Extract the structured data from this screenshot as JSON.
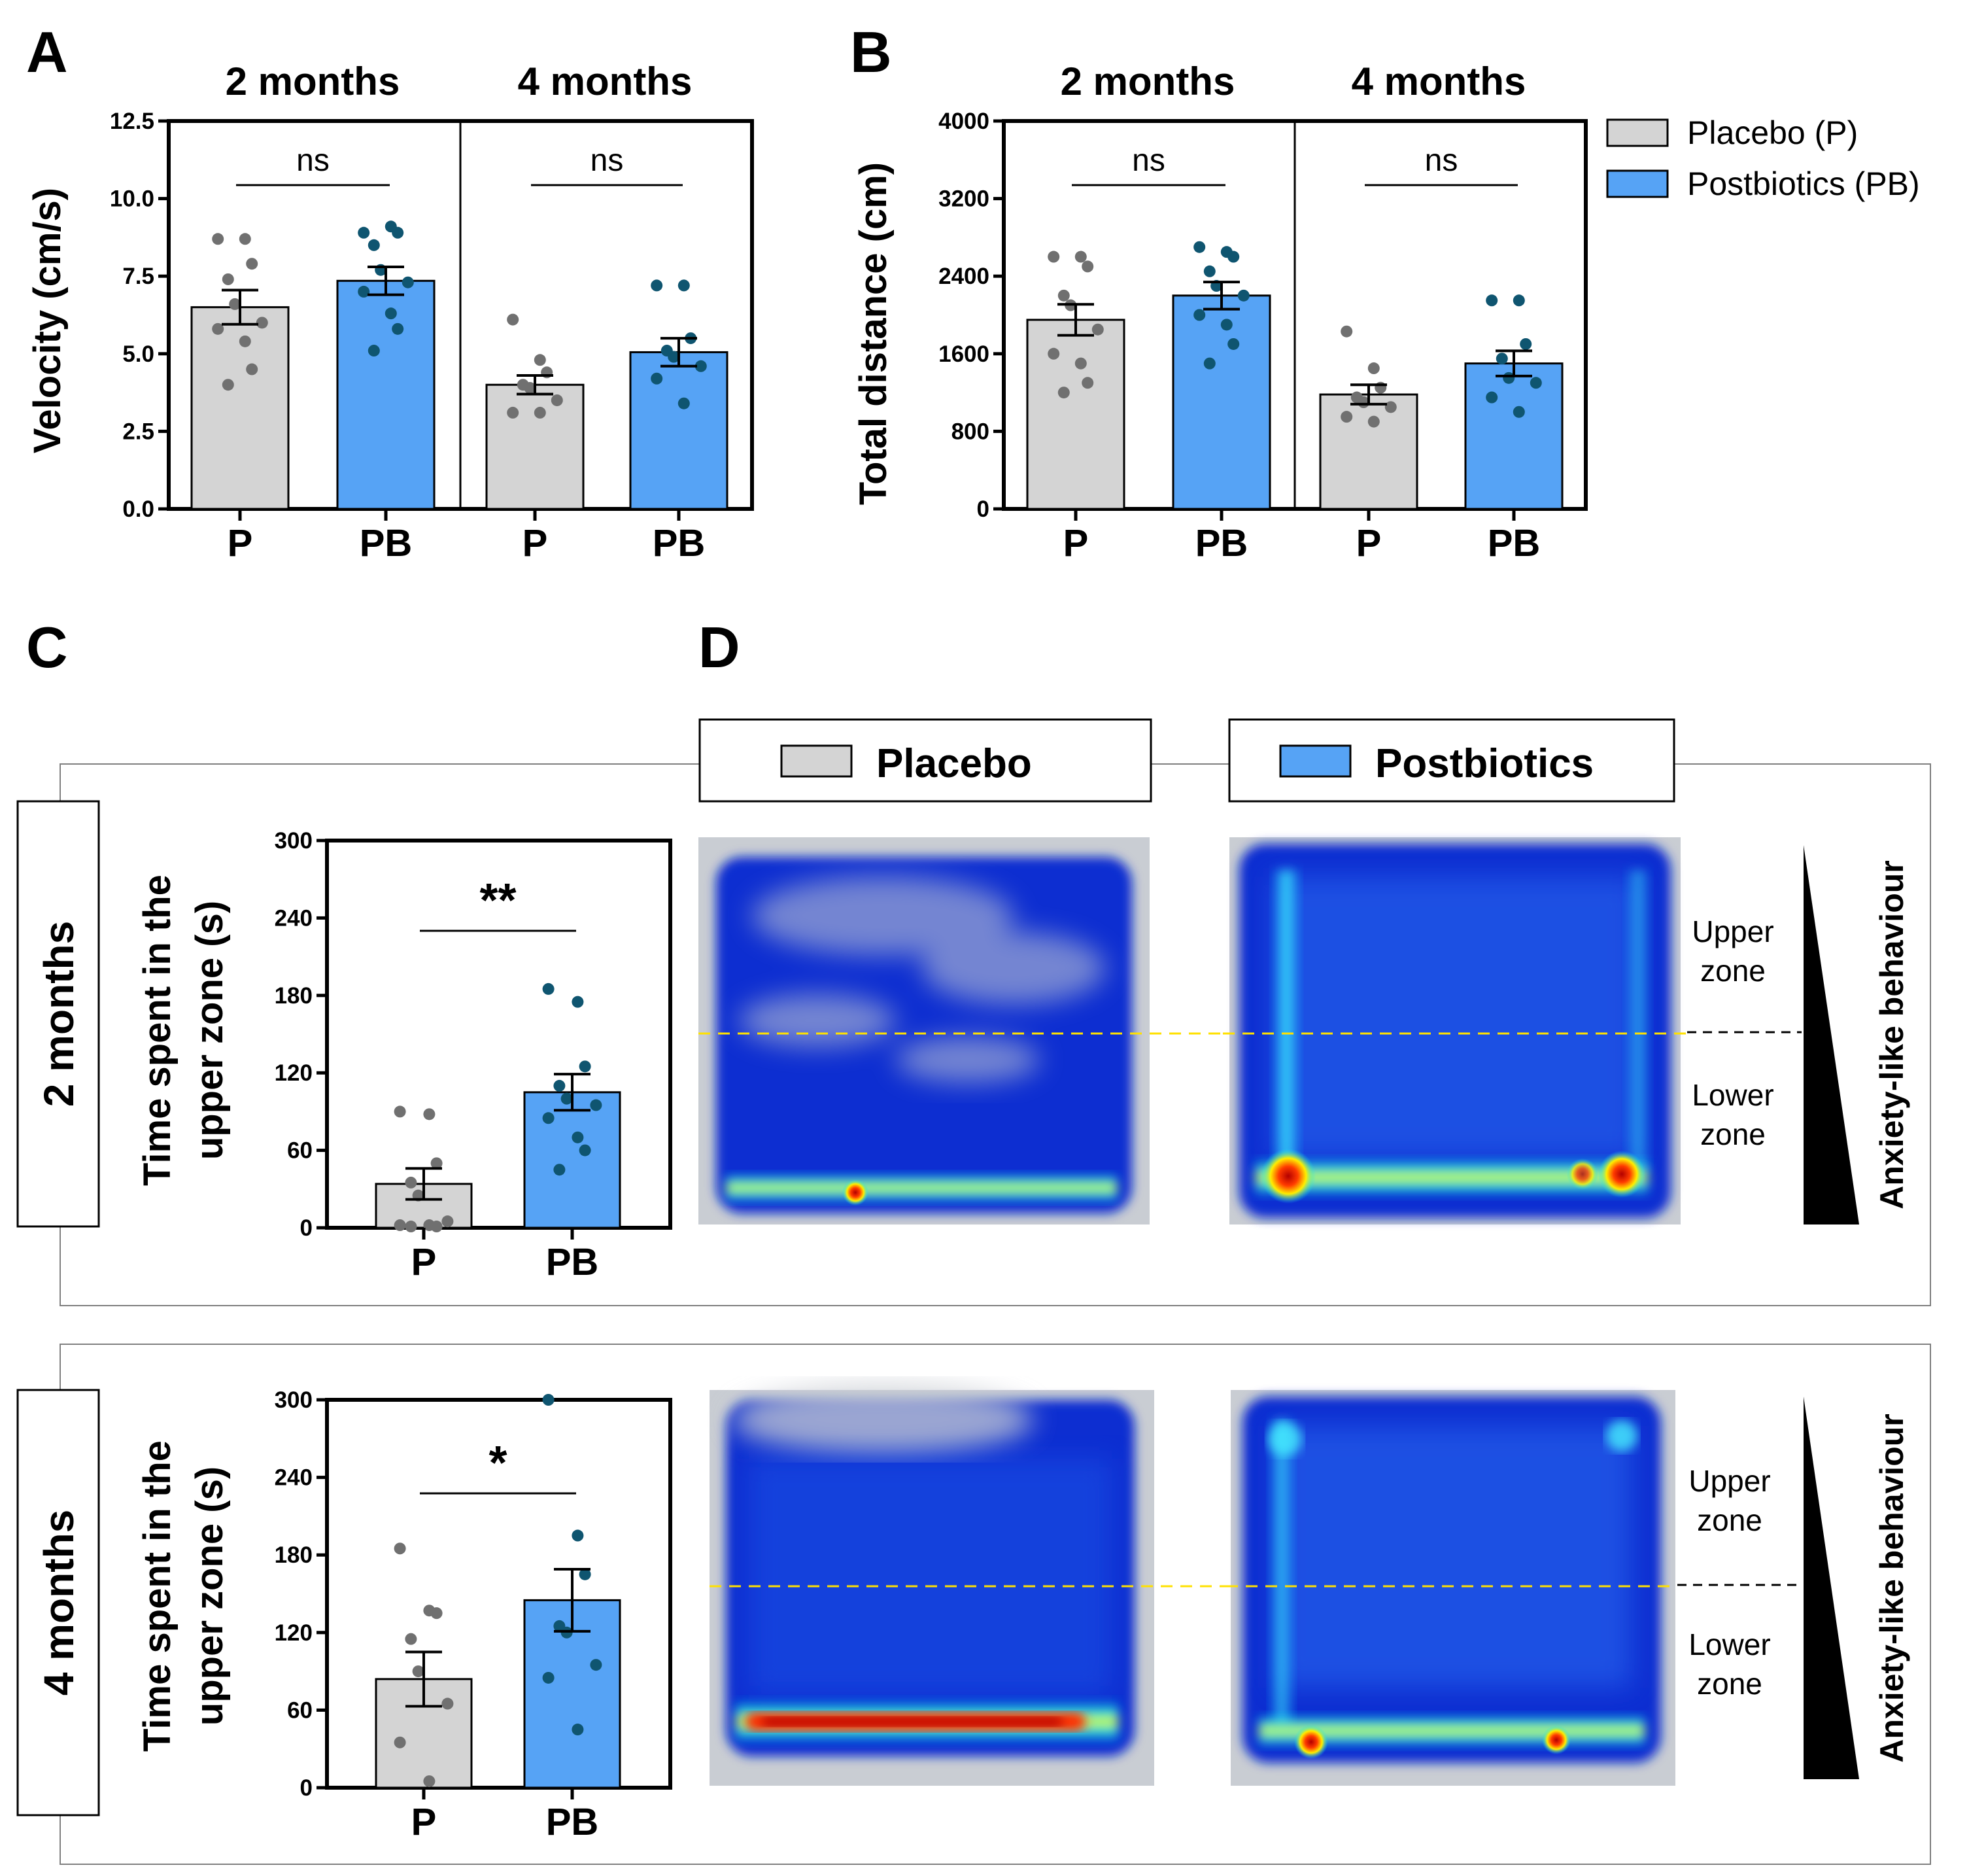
{
  "panel_labels": [
    "A",
    "B",
    "C",
    "D"
  ],
  "legend": {
    "entries": [
      {
        "label": "Placebo (P)",
        "color": "#d4d4d4"
      },
      {
        "label": "Postbiotics (PB)",
        "color": "#56a3f5"
      }
    ]
  },
  "colors": {
    "placebo_fill": "#d4d4d4",
    "postbiotics_fill": "#56a3f5",
    "placebo_dot": "#707070",
    "postbiotics_dot": "#0f5570",
    "heatmap_background": "#0a2fd1"
  },
  "panel_d": {
    "headers": [
      "Placebo",
      "Postbiotics"
    ],
    "zones": [
      {
        "upper": [
          "Upper",
          "zone"
        ],
        "lower": [
          "Lower",
          "zone"
        ]
      },
      {
        "upper": [
          "Upper",
          "zone"
        ],
        "lower": [
          "Lower",
          "zone"
        ]
      }
    ],
    "gradient_label": "Anxiety-like behaviour",
    "rows": [
      "2 months",
      "4 months"
    ]
  },
  "chart_data": [
    {
      "type": "bar",
      "panel": "A",
      "ylabel": "Velocity (cm/s)",
      "ylim": [
        0,
        12.5
      ],
      "yticks": [
        "0.0",
        "2.5",
        "5.0",
        "7.5",
        "10.0",
        "12.5"
      ],
      "groups": [
        {
          "title": "2 months",
          "categories": [
            "P",
            "PB"
          ],
          "means": [
            6.5,
            7.35
          ],
          "sem": [
            0.55,
            0.45
          ],
          "points": [
            [
              8.7,
              8.7,
              7.9,
              7.4,
              6.6,
              6.0,
              5.8,
              5.4,
              4.5,
              4.0
            ],
            [
              8.9,
              9.1,
              8.9,
              8.5,
              7.7,
              7.3,
              7.0,
              6.3,
              5.8,
              5.1
            ]
          ],
          "significance": "ns"
        },
        {
          "title": "4 months",
          "categories": [
            "P",
            "PB"
          ],
          "means": [
            4.0,
            5.05
          ],
          "sem": [
            0.3,
            0.45
          ],
          "points": [
            [
              6.1,
              4.8,
              4.4,
              4.0,
              3.9,
              3.5,
              3.1,
              3.1
            ],
            [
              7.2,
              7.2,
              5.5,
              5.1,
              4.9,
              4.6,
              4.2,
              3.4
            ]
          ],
          "significance": "ns"
        }
      ]
    },
    {
      "type": "bar",
      "panel": "B",
      "ylabel": "Total distance (cm)",
      "ylim": [
        0,
        4000
      ],
      "yticks": [
        "0",
        "800",
        "1600",
        "2400",
        "3200",
        "4000"
      ],
      "groups": [
        {
          "title": "2 months",
          "categories": [
            "P",
            "PB"
          ],
          "means": [
            1950,
            2200
          ],
          "sem": [
            160,
            140
          ],
          "points": [
            [
              2600,
              2600,
              2500,
              2200,
              2100,
              1850,
              1600,
              1500,
              1300,
              1200
            ],
            [
              2700,
              2650,
              2600,
              2450,
              2300,
              2200,
              2000,
              1900,
              1700,
              1500
            ]
          ],
          "significance": "ns"
        },
        {
          "title": "4 months",
          "categories": [
            "P",
            "PB"
          ],
          "means": [
            1180,
            1500
          ],
          "sem": [
            100,
            130
          ],
          "points": [
            [
              1830,
              1450,
              1250,
              1150,
              1100,
              1050,
              950,
              900
            ],
            [
              2150,
              2150,
              1700,
              1550,
              1350,
              1300,
              1150,
              1000
            ]
          ],
          "significance": "ns"
        }
      ]
    },
    {
      "type": "bar",
      "panel": "C-2 months",
      "ylabel": "Time spent in the upper zone (s)",
      "ylabel_lines": [
        "Time spent in the",
        "upper zone (s)"
      ],
      "ylim": [
        0,
        300
      ],
      "yticks": [
        "0",
        "60",
        "120",
        "180",
        "240",
        "300"
      ],
      "categories": [
        "P",
        "PB"
      ],
      "means": [
        34,
        105
      ],
      "sem": [
        12,
        14
      ],
      "points": [
        [
          90,
          88,
          50,
          35,
          25,
          5,
          2,
          2,
          1,
          1
        ],
        [
          185,
          175,
          125,
          110,
          100,
          95,
          85,
          70,
          60,
          45
        ]
      ],
      "significance": "**"
    },
    {
      "type": "bar",
      "panel": "C-4 months",
      "ylabel": "Time spent in the upper zone (s)",
      "ylabel_lines": [
        "Time spent in the",
        "upper zone (s)"
      ],
      "ylim": [
        0,
        300
      ],
      "yticks": [
        "0",
        "60",
        "120",
        "180",
        "240",
        "300"
      ],
      "categories": [
        "P",
        "PB"
      ],
      "means": [
        84,
        145
      ],
      "sem": [
        21,
        24
      ],
      "points": [
        [
          185,
          137,
          135,
          115,
          90,
          65,
          35,
          5
        ],
        [
          300,
          195,
          165,
          125,
          120,
          95,
          85,
          45
        ]
      ],
      "significance": "*"
    }
  ]
}
